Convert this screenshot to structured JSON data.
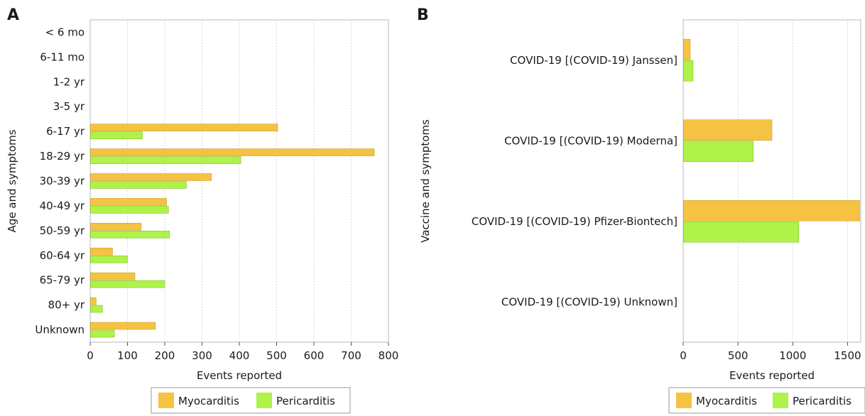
{
  "chart_data": [
    {
      "panel_label": "A",
      "type": "bar",
      "orientation": "horizontal",
      "categories": [
        "< 6 mo",
        "6-11 mo",
        "1-2 yr",
        "3-5 yr",
        "6-17 yr",
        "18-29 yr",
        "30-39 yr",
        "40-49 yr",
        "50-59 yr",
        "60-64 yr",
        "65-79 yr",
        "80+ yr",
        "Unknown"
      ],
      "series": [
        {
          "name": "Myocarditis",
          "color": "#f5c242",
          "values": [
            0,
            0,
            0,
            0,
            503,
            762,
            325,
            205,
            137,
            60,
            120,
            16,
            175
          ]
        },
        {
          "name": "Pericarditis",
          "color": "#aef24a",
          "values": [
            0,
            0,
            0,
            0,
            140,
            404,
            258,
            210,
            213,
            100,
            200,
            33,
            65
          ]
        }
      ],
      "xlabel": "Events reported",
      "ylabel": "Age and symptoms",
      "xlim": [
        0,
        800
      ],
      "xticks": [
        "0",
        "100",
        "200",
        "300",
        "400",
        "500",
        "600",
        "700",
        "800"
      ],
      "grid": "vertical dotted",
      "legend": "bottom"
    },
    {
      "panel_label": "B",
      "type": "bar",
      "orientation": "horizontal",
      "categories": [
        "COVID-19 [(COVID-19) Janssen]",
        "COVID-19 [(COVID-19) Moderna]",
        "COVID-19 [(COVID-19) Pfizer-Biontech]",
        "COVID-19 [(COVID-19) Unknown]"
      ],
      "series": [
        {
          "name": "Myocarditis",
          "color": "#f5c242",
          "values": [
            65,
            810,
            1610,
            0
          ]
        },
        {
          "name": "Pericarditis",
          "color": "#aef24a",
          "values": [
            90,
            640,
            1055,
            2
          ]
        }
      ],
      "xlabel": "Events reported",
      "ylabel": "Vaccine and symptoms",
      "xlim": [
        0,
        1620
      ],
      "xticks": [
        "0",
        "500",
        "1000",
        "1500"
      ],
      "grid": "vertical dotted",
      "legend": "bottom"
    }
  ]
}
